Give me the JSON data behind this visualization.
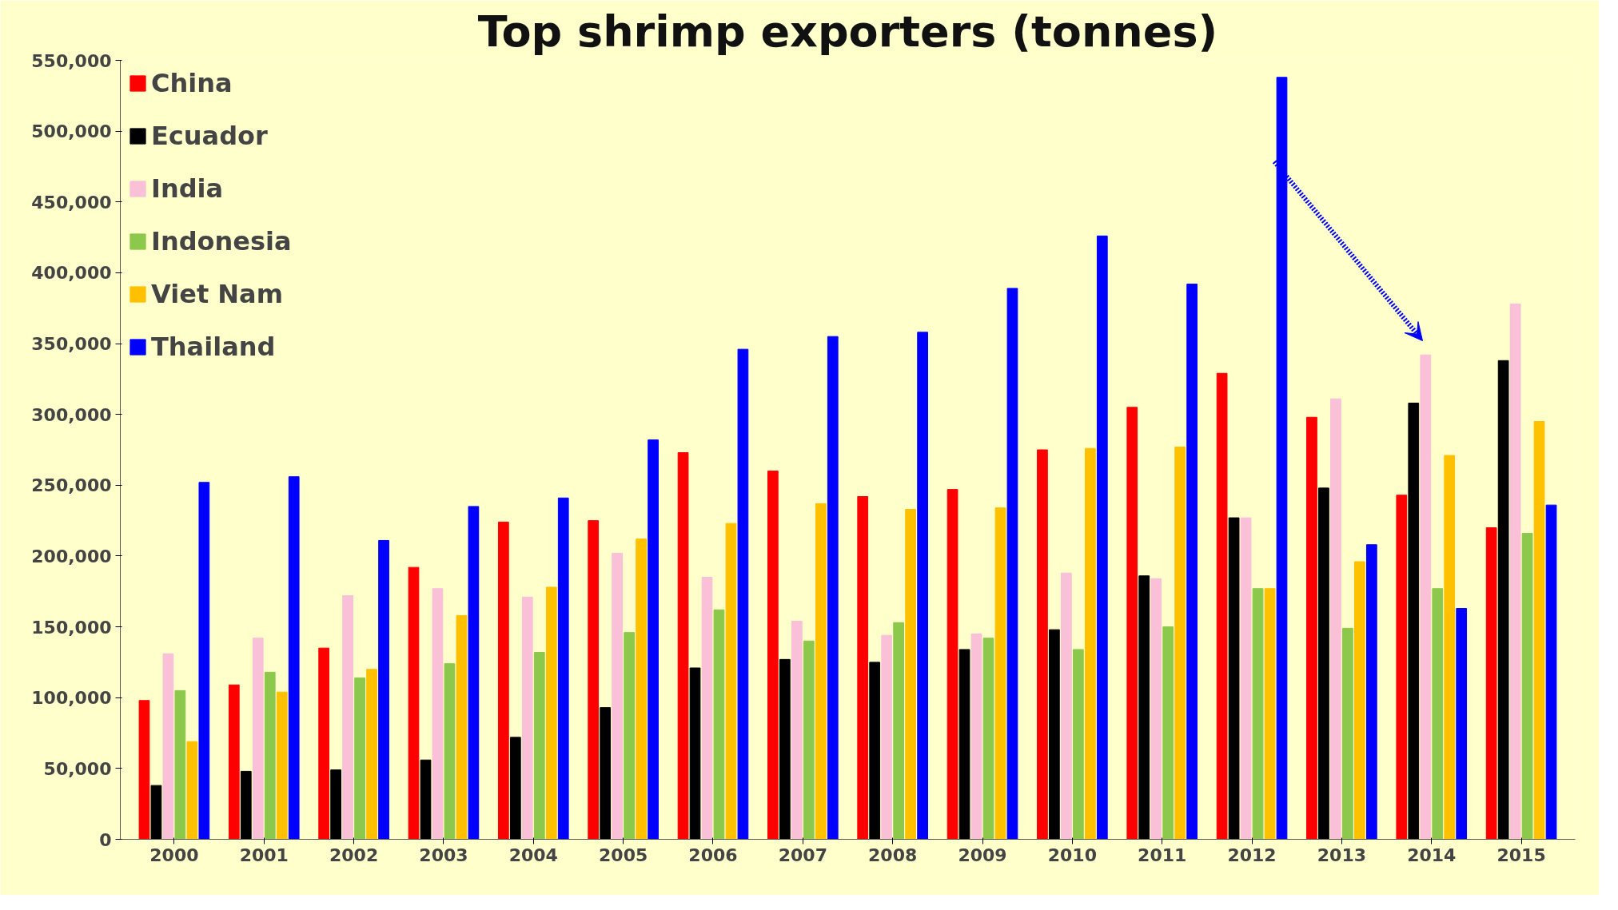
{
  "chart_data": {
    "type": "bar",
    "title": "Top shrimp exporters (tonnes)",
    "categories": [
      "2000",
      "2001",
      "2002",
      "2003",
      "2004",
      "2005",
      "2006",
      "2007",
      "2008",
      "2009",
      "2010",
      "2011",
      "2012",
      "2013",
      "2014",
      "2015"
    ],
    "series": [
      {
        "name": "China",
        "color": "#ff0000",
        "values": [
          98000,
          109000,
          135000,
          192000,
          224000,
          225000,
          273000,
          260000,
          242000,
          247000,
          275000,
          305000,
          329000,
          298000,
          243000,
          220000
        ]
      },
      {
        "name": "Ecuador",
        "color": "#000000",
        "values": [
          38000,
          48000,
          49000,
          56000,
          72000,
          93000,
          121000,
          127000,
          125000,
          134000,
          148000,
          186000,
          227000,
          248000,
          308000,
          338000
        ]
      },
      {
        "name": "India",
        "color": "#f9c0d8",
        "values": [
          131000,
          142000,
          172000,
          177000,
          171000,
          202000,
          185000,
          154000,
          144000,
          145000,
          188000,
          184000,
          227000,
          311000,
          342000,
          378000
        ]
      },
      {
        "name": "Indonesia",
        "color": "#8cc84b",
        "values": [
          105000,
          118000,
          114000,
          124000,
          132000,
          146000,
          162000,
          140000,
          153000,
          142000,
          134000,
          150000,
          177000,
          149000,
          177000,
          216000
        ]
      },
      {
        "name": "Viet Nam",
        "color": "#ffc000",
        "values": [
          69000,
          104000,
          120000,
          158000,
          178000,
          212000,
          223000,
          237000,
          233000,
          234000,
          276000,
          277000,
          177000,
          196000,
          271000,
          295000
        ]
      },
      {
        "name": "Thailand",
        "color": "#0000ff",
        "values": [
          252000,
          256000,
          211000,
          235000,
          241000,
          282000,
          346000,
          355000,
          358000,
          389000,
          426000,
          392000,
          538000,
          208000,
          163000,
          236000
        ]
      }
    ],
    "ylim": [
      0,
      550000
    ],
    "yticks": [
      {
        "value": 0,
        "label": "0"
      },
      {
        "value": 50000,
        "label": "50,000"
      },
      {
        "value": 100000,
        "label": "100,000"
      },
      {
        "value": 150000,
        "label": "150,000"
      },
      {
        "value": 200000,
        "label": "200,000"
      },
      {
        "value": 250000,
        "label": "250,000"
      },
      {
        "value": 300000,
        "label": "300,000"
      },
      {
        "value": 350000,
        "label": "350,000"
      },
      {
        "value": 400000,
        "label": "400,000"
      },
      {
        "value": 450000,
        "label": "450,000"
      },
      {
        "value": 500000,
        "label": "500,000"
      },
      {
        "value": 550000,
        "label": "550,000"
      }
    ],
    "grid": false,
    "legend": "top left"
  }
}
